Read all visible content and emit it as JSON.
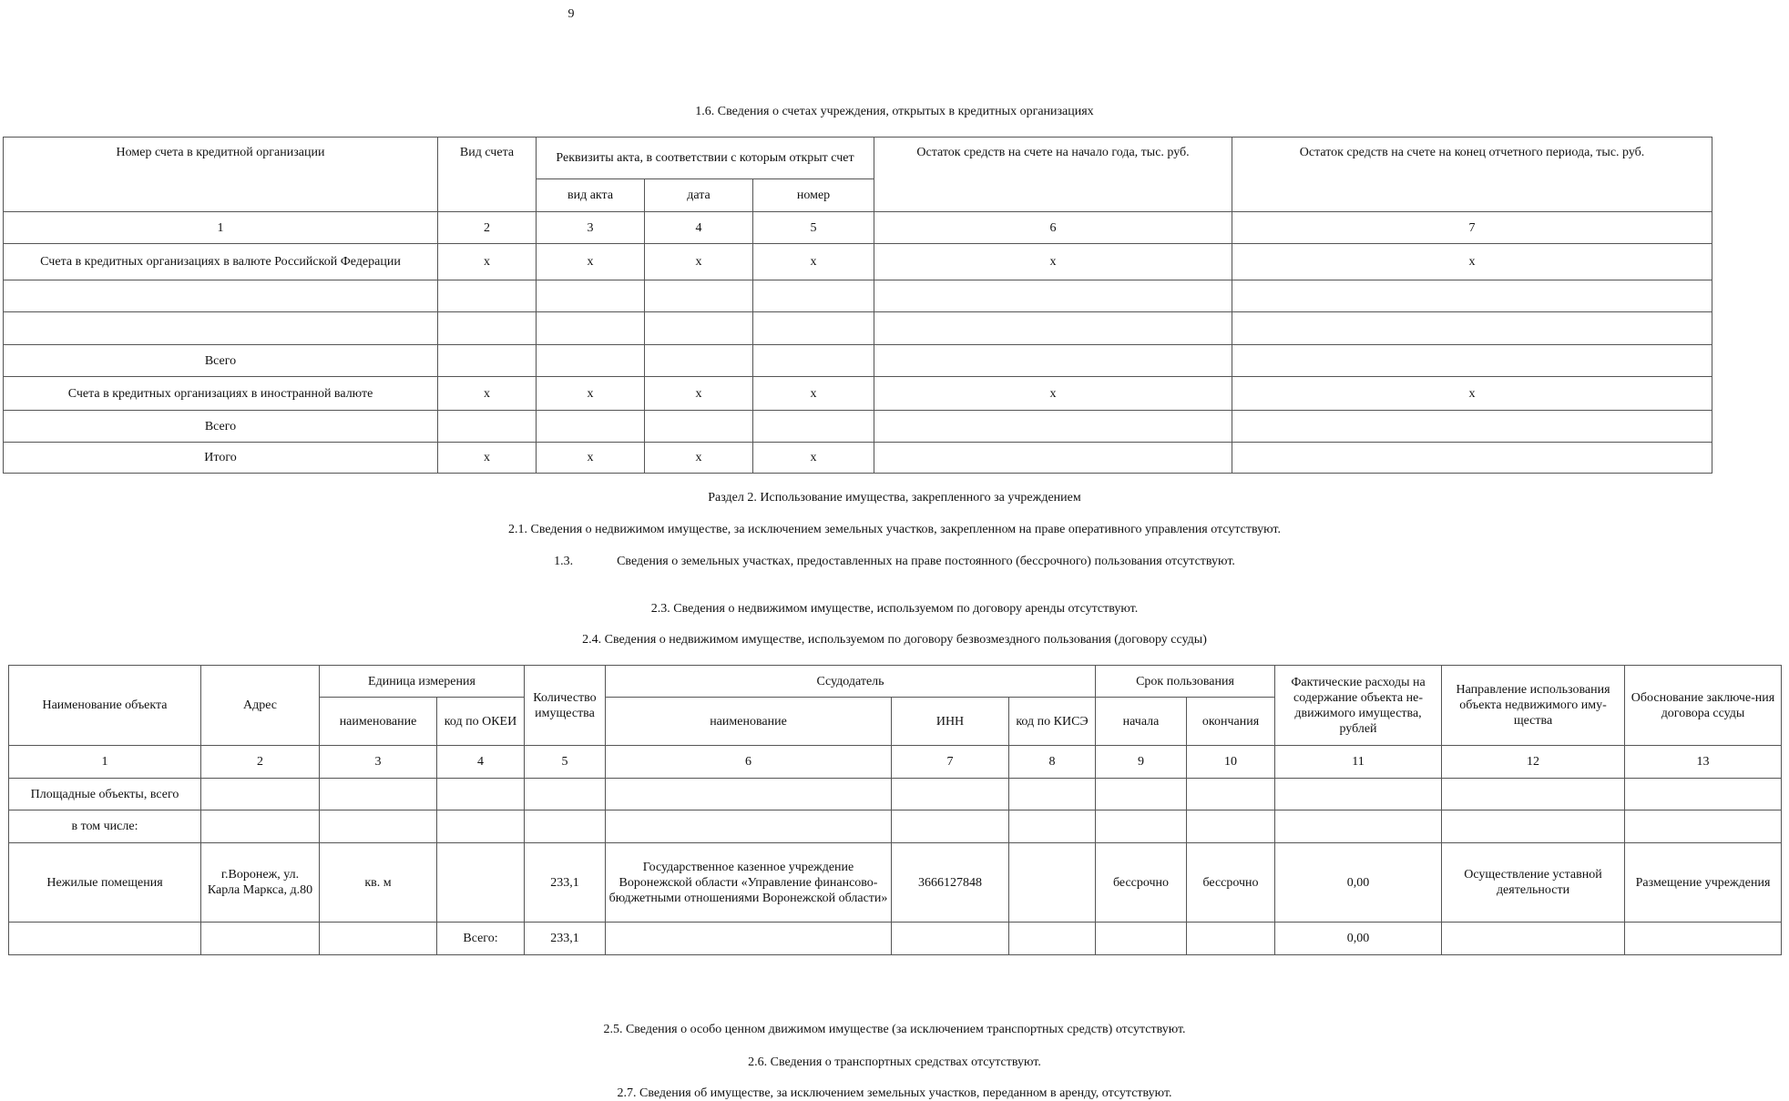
{
  "page_number": "9",
  "section_1_6": {
    "title": "1.6. Сведения о счетах учреждения, открытых в кредитных организациях",
    "headers": {
      "account_number": "Номер счета в кредитной организации",
      "account_type": "Вид счета",
      "act_details": "Реквизиты акта, в соответствии с которым открыт счет",
      "act_type": "вид акта",
      "date": "дата",
      "number": "номер",
      "balance_start": "Остаток средств на счете на начало года, тыс. руб.",
      "balance_end": "Остаток средств на счете на конец отчетного периода, тыс. руб."
    },
    "column_numbers": [
      "1",
      "2",
      "3",
      "4",
      "5",
      "6",
      "7"
    ],
    "rows": [
      [
        "Счета в кредитных организациях в валюте Российской Федерации",
        "x",
        "x",
        "x",
        "x",
        "x",
        "x"
      ],
      [
        "",
        "",
        "",
        "",
        "",
        "",
        ""
      ],
      [
        "",
        "",
        "",
        "",
        "",
        "",
        ""
      ],
      [
        "Всего",
        "",
        "",
        "",
        "",
        "",
        ""
      ],
      [
        "Счета в кредитных организациях в иностранной валюте",
        "x",
        "x",
        "x",
        "x",
        "x",
        "x"
      ],
      [
        "Всего",
        "",
        "",
        "",
        "",
        "",
        ""
      ],
      [
        "Итого",
        "x",
        "x",
        "x",
        "x",
        "",
        ""
      ]
    ]
  },
  "section_2": {
    "title": "Раздел 2. Использование имущества, закрепленного за учреждением",
    "s2_1": "2.1. Сведения о недвижимом имуществе, за исключением земельных участков, закрепленном на праве оперативного управления отсутствуют.",
    "s1_3_num": "1.3.",
    "s1_3_text": "Сведения о земельных участках, предоставленных на праве постоянного (бессрочного) пользования отсутствуют.",
    "s2_3": "2.3. Сведения о недвижимом имуществе, используемом по договору аренды отсутствуют.",
    "s2_4": "2.4. Сведения о недвижимом имуществе, используемом по договору безвозмездного пользования (договору ссуды)",
    "s2_5": "2.5. Сведения о особо ценном движимом имуществе (за исключением транспортных средств) отсутствуют.",
    "s2_6": "2.6. Сведения о транспортных средствах отсутствуют.",
    "s2_7": "2.7. Сведения об имуществе, за исключением земельных участков, переданном в аренду, отсутствуют."
  },
  "table_2_4": {
    "headers": {
      "object_name": "Наименование объекта",
      "address": "Адрес",
      "unit": "Единица измерения",
      "unit_name": "наименование",
      "okei": "код по ОКЕИ",
      "quantity": "Количество имущества",
      "lender": "Ссудодатель",
      "lender_name": "наименование",
      "inn": "ИНН",
      "kise": "код по КИСЭ",
      "term": "Срок пользования",
      "term_start": "начала",
      "term_end": "окончания",
      "expenses": "Фактические расходы на содержание объекта не-движимого имущества, рублей",
      "usage": "Направление использования объекта недвижимого иму-щества",
      "basis": "Обоснование заключе-ния договора ссуды"
    },
    "column_numbers": [
      "1",
      "2",
      "3",
      "4",
      "5",
      "6",
      "7",
      "8",
      "9",
      "10",
      "11",
      "12",
      "13"
    ],
    "rows": [
      [
        "Площадные объекты, всего",
        "",
        "",
        "",
        "",
        "",
        "",
        "",
        "",
        "",
        "",
        "",
        ""
      ],
      [
        "в том числе:",
        "",
        "",
        "",
        "",
        "",
        "",
        "",
        "",
        "",
        "",
        "",
        ""
      ],
      [
        "Нежилые помещения",
        "г.Воронеж, ул. Карла Маркса, д.80",
        "кв. м",
        "",
        "233,1",
        "Государственное казенное учреждение Воронежской области «Управление финансово-бюджетными отношениями Воронежской области»",
        "3666127848",
        "",
        "бессрочно",
        "бессрочно",
        "0,00",
        "Осуществление уставной деятельности",
        "Размещение учреждения"
      ],
      [
        "",
        "",
        "",
        "Всего:",
        "233,1",
        "",
        "",
        "",
        "",
        "",
        "0,00",
        "",
        ""
      ]
    ]
  }
}
